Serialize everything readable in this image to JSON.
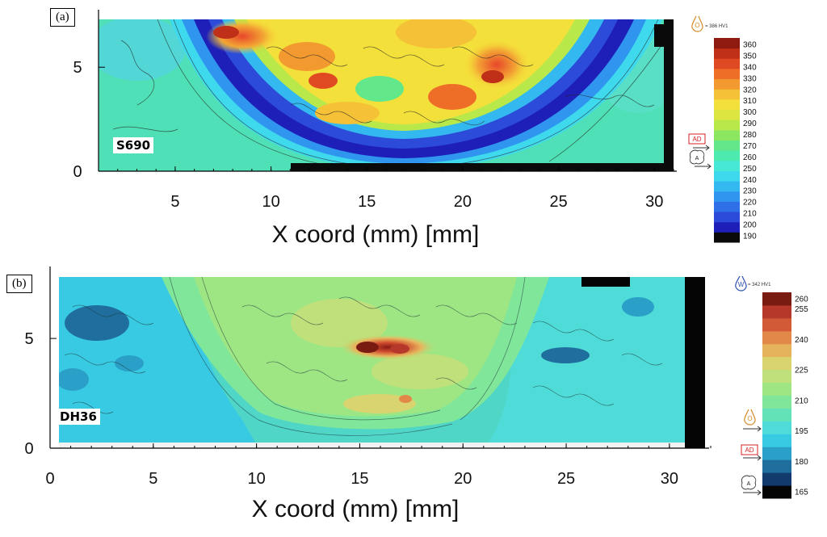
{
  "chart_data": [
    {
      "type": "heatmap",
      "panel": "(a)",
      "sample": "S690",
      "xlabel": "X coord (mm)  [mm]",
      "xlim": [
        1,
        31
      ],
      "ylim": [
        0,
        7.3
      ],
      "xticks": [
        5,
        10,
        15,
        20,
        25,
        30
      ],
      "yticks": [
        0,
        5
      ],
      "colorbar": {
        "levels": [
          190,
          200,
          210,
          220,
          230,
          240,
          250,
          260,
          270,
          280,
          290,
          300,
          310,
          320,
          330,
          340,
          350,
          360
        ],
        "colors": [
          "#0a0a0a",
          "#1d1fb8",
          "#2b4bd8",
          "#2f6fe8",
          "#2f95ef",
          "#33b9f0",
          "#3fd9ee",
          "#47e8d6",
          "#4deab0",
          "#62e88a",
          "#8ce65f",
          "#b8e84a",
          "#dde640",
          "#f4e03a",
          "#f5c237",
          "#f29a30",
          "#ee6e28",
          "#e04a22",
          "#c03018",
          "#8e1a10"
        ],
        "legend_text": "= 386 HV1",
        "markers": [
          "O",
          "AD",
          "A"
        ]
      }
    },
    {
      "type": "heatmap",
      "panel": "(b)",
      "sample": "DH36",
      "xlabel": "X coord (mm)  [mm]",
      "xlim": [
        0,
        32
      ],
      "ylim": [
        0,
        7.8
      ],
      "xticks": [
        0,
        5,
        10,
        15,
        20,
        25,
        30
      ],
      "yticks": [
        0,
        5
      ],
      "colorbar": {
        "levels": [
          165,
          180,
          195,
          210,
          225,
          240,
          255,
          260
        ],
        "colors": [
          "#050505",
          "#123a6c",
          "#1f6e9e",
          "#2aa0c8",
          "#38c9e3",
          "#4fdcd8",
          "#63e2b8",
          "#7fe69a",
          "#9ee684",
          "#bfe07a",
          "#d9d470",
          "#e6b35d",
          "#e2894a",
          "#d35a36",
          "#b6382a",
          "#7a1b12"
        ],
        "legend_text": "= 342 HV1",
        "markers": [
          "W",
          "O",
          "AD",
          "A"
        ]
      }
    }
  ]
}
